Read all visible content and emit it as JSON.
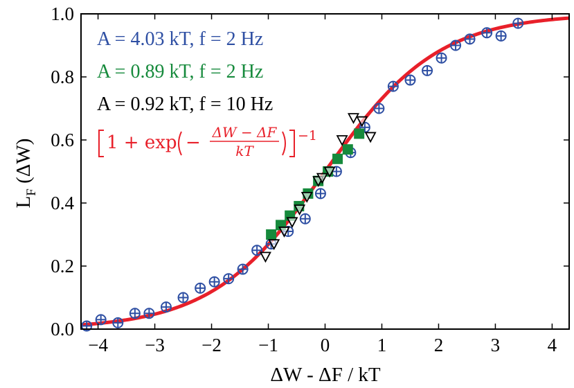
{
  "colors": {
    "series_a": "#2e4fa3",
    "series_b": "#168a3c",
    "series_c": "#000000",
    "fit": "#e8202a"
  },
  "chart_data": {
    "type": "scatter",
    "xlabel": "ΔW - ΔF / kT",
    "ylabel": "L",
    "ylabel_sub": "F",
    "ylabel_arg": " (ΔW)",
    "xlim": [
      -4.3,
      4.3
    ],
    "ylim": [
      0.0,
      1.0
    ],
    "x_ticks": [
      -4,
      -3,
      -2,
      -1,
      0,
      1,
      2,
      3,
      4
    ],
    "x_tick_labels": [
      "−4",
      "−3",
      "−2",
      "−1",
      "0",
      "1",
      "2",
      "3",
      "4"
    ],
    "y_ticks": [
      0.0,
      0.2,
      0.4,
      0.6,
      0.8,
      1.0
    ],
    "y_tick_labels": [
      "0.0",
      "0.2",
      "0.4",
      "0.6",
      "0.8",
      "1.0"
    ],
    "grid": false,
    "legend_position": "top-left",
    "series": [
      {
        "name": "A = 4.03 kT, f = 2 Hz",
        "marker": "circle-plus",
        "color": "#2e4fa3",
        "x": [
          -4.2,
          -3.95,
          -3.65,
          -3.35,
          -3.1,
          -2.8,
          -2.5,
          -2.2,
          -1.95,
          -1.7,
          -1.45,
          -1.2,
          -0.95,
          -0.65,
          -0.35,
          -0.08,
          0.2,
          0.45,
          0.7,
          0.95,
          1.2,
          1.5,
          1.8,
          2.05,
          2.3,
          2.55,
          2.85,
          3.1,
          3.4
        ],
        "y": [
          0.01,
          0.03,
          0.02,
          0.05,
          0.05,
          0.07,
          0.1,
          0.13,
          0.15,
          0.16,
          0.19,
          0.25,
          0.27,
          0.31,
          0.35,
          0.43,
          0.5,
          0.56,
          0.64,
          0.7,
          0.77,
          0.79,
          0.82,
          0.86,
          0.9,
          0.92,
          0.94,
          0.93,
          0.97
        ]
      },
      {
        "name": "A = 0.89 kT, f = 2 Hz",
        "marker": "square",
        "color": "#168a3c",
        "x": [
          -0.95,
          -0.78,
          -0.62,
          -0.46,
          -0.3,
          -0.12,
          0.05,
          0.22,
          0.4,
          0.6
        ],
        "y": [
          0.3,
          0.33,
          0.36,
          0.39,
          0.43,
          0.47,
          0.5,
          0.54,
          0.57,
          0.62
        ]
      },
      {
        "name": "A = 0.92 kT, f = 10 Hz",
        "marker": "triangle-down",
        "color": "#000000",
        "x": [
          -1.05,
          -0.9,
          -0.72,
          -0.58,
          -0.45,
          -0.32,
          -0.12,
          -0.05,
          0.08,
          0.3,
          0.5,
          0.65,
          0.8
        ],
        "y": [
          0.23,
          0.27,
          0.31,
          0.34,
          0.38,
          0.42,
          0.47,
          0.48,
          0.5,
          0.6,
          0.67,
          0.66,
          0.61
        ]
      }
    ],
    "fit_curve": {
      "name": "[1+exp(−(ΔW−ΔF)/kT)]⁻¹",
      "formula": "1/(1+exp(-x))",
      "color": "#e8202a"
    }
  }
}
